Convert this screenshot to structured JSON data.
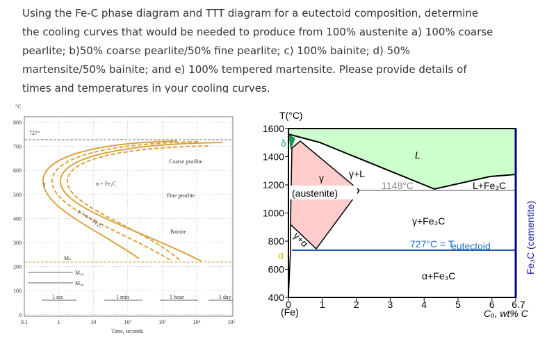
{
  "question": {
    "lines": [
      "Using the Fe-C phase diagram and TTT diagram for a eutectoid composition, determine",
      "the cooling curves that would be needed to produce from 100% austenite a) 100% coarse",
      "pearlite; b)50% coarse pearlite/50% fine pearlite; c) 100% bainite; d) 50%",
      "martensite/50% bainite; and e) 100% tempered martensite. Please provide details of",
      "times and temperatures in your cooling curves."
    ]
  },
  "ttt_diagram": {
    "y_unit": "°C",
    "y_ticks": [
      "800",
      "700",
      "600",
      "500",
      "400",
      "300",
      "200",
      "100",
      "0"
    ],
    "x_ticks": [
      "0.1",
      "1",
      "10",
      "10²",
      "10³",
      "10⁴",
      "10⁵"
    ],
    "x_label": "Time, seconds",
    "eutectoid_label": "727°",
    "time_marks": [
      "1 sec",
      "1 min",
      "1 hour",
      "1 day"
    ],
    "regions": {
      "gamma": "γ",
      "alpha_fe3c": "α + Fe₃C",
      "mixed": "γ + α + Fe₃C",
      "coarse": "Coarse pearlite",
      "fine": "Fine pearlite",
      "bainite": "Bainite"
    },
    "martensite": [
      "Mₛ",
      "M₅₀",
      "M₉₀"
    ]
  },
  "phase_diagram": {
    "y_label": "T(°C)",
    "y_ticks": [
      "1600",
      "1400",
      "1200",
      "1000",
      "800",
      "600",
      "400"
    ],
    "x_ticks": [
      "0",
      "1",
      "2",
      "3",
      "4",
      "5",
      "6",
      "6.7"
    ],
    "x_left_label": "(Fe)",
    "x_label": "Cₒ, wt% C",
    "right_label": "Fe₃C (cementite)",
    "eutectic": "1148°C",
    "eutectoid": "727°C = T",
    "eutectoid_sub": "eutectoid",
    "regions": {
      "liquid": "L",
      "gamma_liquid": "γ+L",
      "gamma": "γ",
      "austenite": "(austenite)",
      "liquid_fe3c": "L+Fe₃C",
      "gamma_fe3c": "γ+Fe₃C",
      "alpha_fe3c": "α+Fe₃C",
      "delta": "δ",
      "alpha": "α",
      "gamma_alpha": "γ+α"
    }
  }
}
